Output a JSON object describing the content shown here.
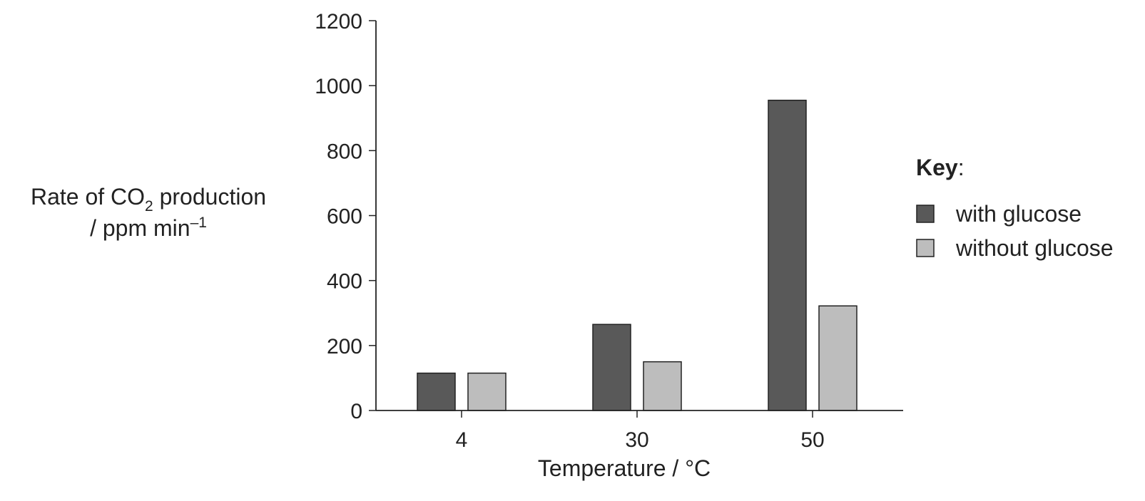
{
  "chart_data": {
    "type": "bar",
    "categories": [
      "4",
      "30",
      "50"
    ],
    "series": [
      {
        "name": "with glucose",
        "values": [
          115,
          265,
          955
        ],
        "color": "#595959"
      },
      {
        "name": "without glucose",
        "values": [
          115,
          150,
          322
        ],
        "color": "#bdbdbd"
      }
    ],
    "xlabel": "Temperature / °C",
    "ylabel": {
      "line1_pre": "Rate of CO",
      "line1_sub": "2",
      "line1_post": " production",
      "line2_pre": "/ ppm min",
      "line2_sup": "–1"
    },
    "ylim": [
      0,
      1200
    ],
    "yticks": [
      0,
      200,
      400,
      600,
      800,
      1000,
      1200
    ],
    "grid": false,
    "legend": {
      "title_bold": "Key",
      "title_suffix": ":",
      "placement": "right"
    },
    "edge_color": "#222222"
  }
}
